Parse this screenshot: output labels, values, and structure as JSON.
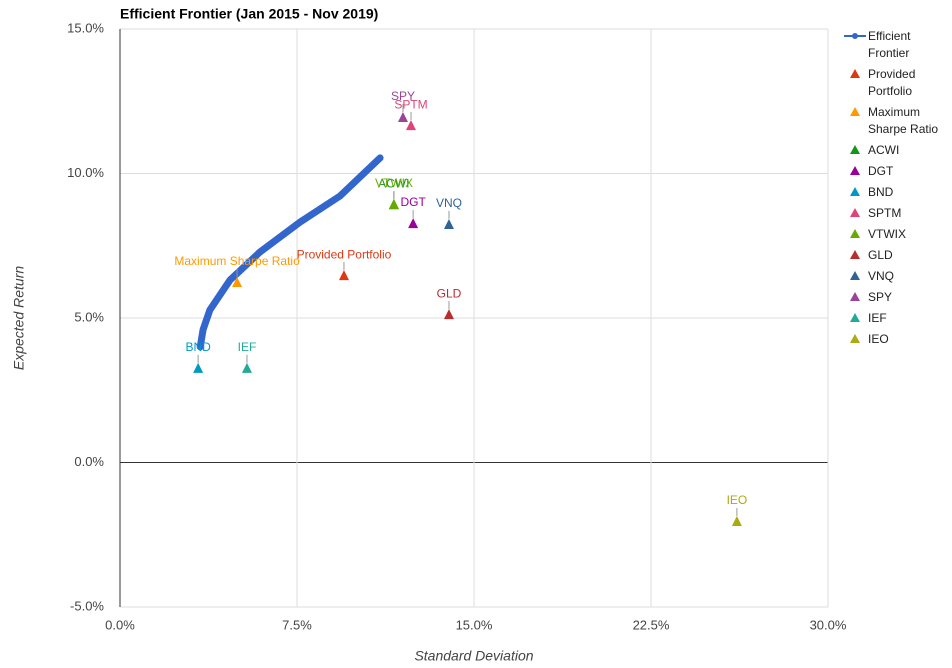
{
  "chart_data": {
    "type": "scatter",
    "title": "Efficient Frontier (Jan 2015 - Nov 2019)",
    "x_label": "Standard Deviation",
    "y_label": "Expected Return",
    "xlim": [
      0,
      30
    ],
    "ylim": [
      -5,
      15
    ],
    "xticks": [
      {
        "value": 0,
        "label": "0.0%"
      },
      {
        "value": 7.5,
        "label": "7.5%"
      },
      {
        "value": 15,
        "label": "15.0%"
      },
      {
        "value": 22.5,
        "label": "22.5%"
      },
      {
        "value": 30,
        "label": "30.0%"
      }
    ],
    "yticks": [
      {
        "value": -5,
        "label": "-5.0%"
      },
      {
        "value": 0,
        "label": "0.0%"
      },
      {
        "value": 5,
        "label": "5.0%"
      },
      {
        "value": 10,
        "label": "10.0%"
      },
      {
        "value": 15,
        "label": "15.0%"
      }
    ],
    "grid": true,
    "series": [
      {
        "name": "Efficient Frontier",
        "color": "#3366cc",
        "mode": "line",
        "x": [
          3.4,
          3.52,
          3.81,
          4.66,
          5.93,
          7.63,
          9.32,
          11.02
        ],
        "values": [
          4.0,
          4.6,
          5.28,
          6.31,
          7.28,
          8.32,
          9.22,
          10.54
        ]
      },
      {
        "name": "Provided Portfolio",
        "color": "#dc3912",
        "mode": "marker",
        "x": [
          9.49
        ],
        "values": [
          6.45
        ]
      },
      {
        "name": "Maximum Sharpe Ratio",
        "color": "#ff9900",
        "mode": "marker",
        "x": [
          4.96
        ],
        "values": [
          6.21
        ]
      },
      {
        "name": "ACWI",
        "color": "#109618",
        "mode": "marker",
        "x": [
          11.6
        ],
        "values": [
          8.9
        ]
      },
      {
        "name": "DGT",
        "color": "#990099",
        "mode": "marker",
        "x": [
          12.42
        ],
        "values": [
          8.25
        ]
      },
      {
        "name": "BND",
        "color": "#0099c6",
        "mode": "marker",
        "x": [
          3.31
        ],
        "values": [
          3.24
        ]
      },
      {
        "name": "SPTM",
        "color": "#dd4477",
        "mode": "marker",
        "x": [
          12.33
        ],
        "values": [
          11.64
        ]
      },
      {
        "name": "VTWIX",
        "color": "#66aa00",
        "mode": "marker",
        "x": [
          11.61
        ],
        "values": [
          8.91
        ]
      },
      {
        "name": "GLD",
        "color": "#b82e2e",
        "mode": "marker",
        "x": [
          13.94
        ],
        "values": [
          5.1
        ]
      },
      {
        "name": "VNQ",
        "color": "#316395",
        "mode": "marker",
        "x": [
          13.94
        ],
        "values": [
          8.22
        ]
      },
      {
        "name": "SPY",
        "color": "#994499",
        "mode": "marker",
        "x": [
          11.99
        ],
        "values": [
          11.92
        ]
      },
      {
        "name": "IEF",
        "color": "#22aa99",
        "mode": "marker",
        "x": [
          5.38
        ],
        "values": [
          3.24
        ]
      },
      {
        "name": "IEO",
        "color": "#aaaa11",
        "mode": "marker",
        "x": [
          26.14
        ],
        "values": [
          -2.06
        ]
      }
    ]
  }
}
